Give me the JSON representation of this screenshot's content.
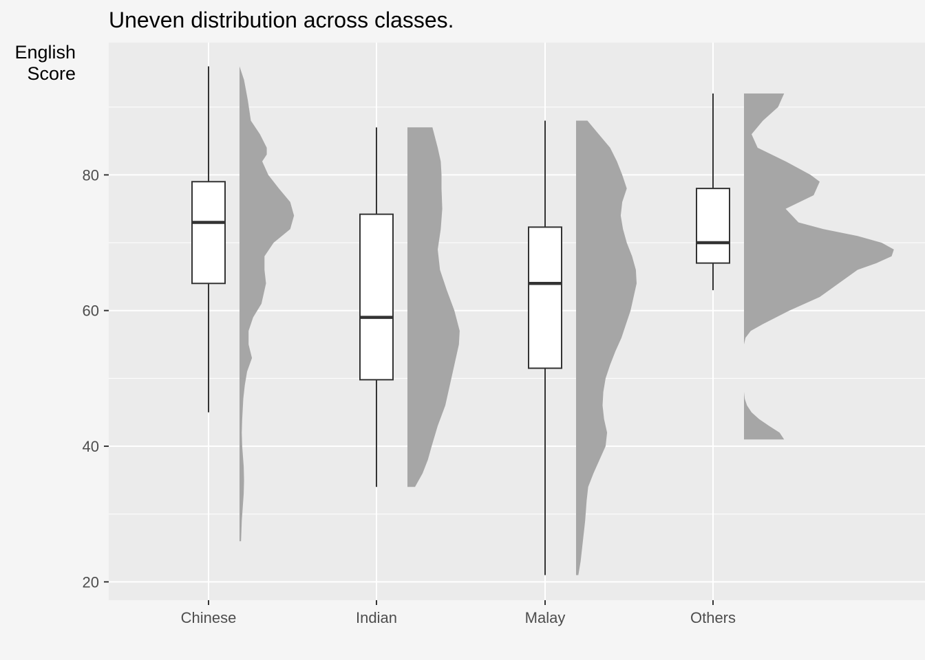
{
  "chart_data": {
    "type": "raincloud",
    "title": "Uneven distribution across classes.",
    "ylabel_lines": [
      "English",
      "Score"
    ],
    "xlabel": "",
    "categories": [
      "Chinese",
      "Indian",
      "Malay",
      "Others"
    ],
    "ylim": [
      17.3,
      99.5
    ],
    "yticks": [
      20,
      40,
      60,
      80
    ],
    "grid": true,
    "colors": {
      "panel": "#ebebeb",
      "grid": "#ffffff",
      "density": "#a6a6a6",
      "box_fill": "#ffffff",
      "box_line": "#333333",
      "median": "#333333",
      "tick_text": "#4d4d4d"
    },
    "boxplots": [
      {
        "category": "Chinese",
        "min": 45,
        "q1": 64,
        "median": 73,
        "q3": 79,
        "max": 96
      },
      {
        "category": "Indian",
        "min": 34,
        "q1": 49.8,
        "median": 59,
        "q3": 74.2,
        "max": 87
      },
      {
        "category": "Malay",
        "min": 21,
        "q1": 51.5,
        "median": 64,
        "q3": 72.3,
        "max": 88
      },
      {
        "category": "Others",
        "min": 63,
        "q1": 67,
        "median": 70,
        "q3": 78,
        "max": 92
      }
    ],
    "densities": [
      {
        "category": "Chinese",
        "segments": [
          [
            [
              26,
              0.02
            ],
            [
              29,
              0.03
            ],
            [
              33,
              0.055
            ],
            [
              35,
              0.06
            ],
            [
              37,
              0.055
            ],
            [
              40,
              0.035
            ],
            [
              42,
              0.03
            ],
            [
              44,
              0.035
            ],
            [
              47,
              0.05
            ],
            [
              49,
              0.07
            ],
            [
              51,
              0.1
            ],
            [
              53,
              0.165
            ],
            [
              55,
              0.12
            ],
            [
              57,
              0.12
            ],
            [
              59,
              0.18
            ],
            [
              61,
              0.29
            ],
            [
              64,
              0.35
            ],
            [
              66,
              0.33
            ],
            [
              68,
              0.33
            ],
            [
              70,
              0.45
            ],
            [
              72,
              0.67
            ],
            [
              74,
              0.72
            ],
            [
              76,
              0.67
            ],
            [
              78,
              0.52
            ],
            [
              80,
              0.38
            ],
            [
              82,
              0.3
            ],
            [
              83,
              0.36
            ],
            [
              84,
              0.36
            ],
            [
              86,
              0.27
            ],
            [
              88,
              0.15
            ],
            [
              91,
              0.11
            ],
            [
              94,
              0.06
            ],
            [
              96,
              0.0
            ]
          ]
        ]
      },
      {
        "category": "Indian",
        "segments": [
          [
            [
              34,
              0.1
            ],
            [
              36,
              0.2
            ],
            [
              38,
              0.27
            ],
            [
              40,
              0.32
            ],
            [
              43,
              0.4
            ],
            [
              46,
              0.5
            ],
            [
              49,
              0.56
            ],
            [
              52,
              0.62
            ],
            [
              55,
              0.68
            ],
            [
              57,
              0.69
            ],
            [
              60,
              0.62
            ],
            [
              63,
              0.52
            ],
            [
              66,
              0.43
            ],
            [
              69,
              0.4
            ],
            [
              72,
              0.44
            ],
            [
              75,
              0.46
            ],
            [
              78,
              0.45
            ],
            [
              80,
              0.45
            ],
            [
              82,
              0.44
            ],
            [
              84,
              0.4
            ],
            [
              87,
              0.33
            ]
          ]
        ]
      },
      {
        "category": "Malay",
        "segments": [
          [
            [
              21,
              0.03
            ],
            [
              23,
              0.06
            ],
            [
              26,
              0.09
            ],
            [
              29,
              0.12
            ],
            [
              32,
              0.14
            ],
            [
              34,
              0.16
            ],
            [
              36,
              0.23
            ],
            [
              38,
              0.31
            ],
            [
              40,
              0.39
            ],
            [
              42,
              0.41
            ],
            [
              44,
              0.37
            ],
            [
              46,
              0.35
            ],
            [
              48,
              0.36
            ],
            [
              50,
              0.39
            ],
            [
              52,
              0.45
            ],
            [
              54,
              0.52
            ],
            [
              56,
              0.6
            ],
            [
              58,
              0.66
            ],
            [
              60,
              0.72
            ],
            [
              62,
              0.76
            ],
            [
              64,
              0.8
            ],
            [
              66,
              0.79
            ],
            [
              68,
              0.74
            ],
            [
              70,
              0.67
            ],
            [
              72,
              0.62
            ],
            [
              74,
              0.59
            ],
            [
              76,
              0.61
            ],
            [
              78,
              0.67
            ],
            [
              80,
              0.61
            ],
            [
              82,
              0.54
            ],
            [
              84,
              0.45
            ],
            [
              86,
              0.3
            ],
            [
              88,
              0.15
            ]
          ]
        ]
      },
      {
        "category": "Others",
        "segments": [
          [
            [
              41,
              0.53
            ],
            [
              42,
              0.47
            ],
            [
              43,
              0.33
            ],
            [
              44,
              0.2
            ],
            [
              45,
              0.1
            ],
            [
              46,
              0.04
            ],
            [
              47,
              0.01
            ],
            [
              48,
              0.0
            ],
            [
              49,
              0.0
            ]
          ],
          [
            [
              55,
              0.0
            ],
            [
              56,
              0.02
            ],
            [
              57,
              0.09
            ],
            [
              58,
              0.25
            ],
            [
              60,
              0.6
            ],
            [
              62,
              1.0
            ],
            [
              64,
              1.25
            ],
            [
              66,
              1.5
            ],
            [
              67,
              1.75
            ],
            [
              68,
              1.95
            ],
            [
              69,
              1.98
            ],
            [
              70,
              1.82
            ],
            [
              71,
              1.5
            ],
            [
              72,
              1.05
            ],
            [
              73,
              0.72
            ],
            [
              75,
              0.55
            ],
            [
              77,
              0.92
            ],
            [
              79,
              1.0
            ],
            [
              80,
              0.88
            ],
            [
              82,
              0.55
            ],
            [
              84,
              0.18
            ],
            [
              86,
              0.1
            ],
            [
              88,
              0.25
            ],
            [
              90,
              0.45
            ],
            [
              92,
              0.53
            ]
          ]
        ]
      }
    ]
  }
}
